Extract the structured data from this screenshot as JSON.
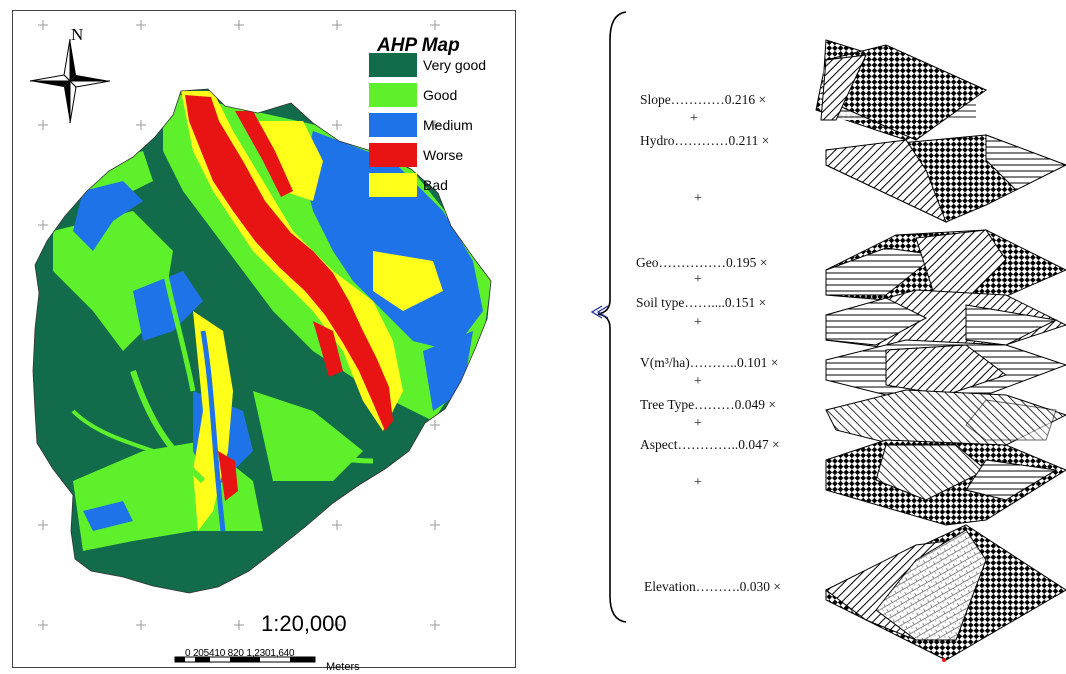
{
  "map": {
    "north_label": "N",
    "legend": {
      "title": "AHP Map",
      "items": [
        {
          "label": "Very good",
          "color": "#126b4a"
        },
        {
          "label": "Good",
          "color": "#5ef02b"
        },
        {
          "label": "Medium",
          "color": "#1e73e8"
        },
        {
          "label": "Worse",
          "color": "#e81414"
        },
        {
          "label": "Bad",
          "color": "#ffff1a"
        }
      ]
    },
    "scale_ratio": "1:20,000",
    "scale_ticks": "0 205410  820 1,2301,640",
    "scale_unit": "Meters"
  },
  "layers": {
    "labels": [
      "Slope…………0.216 ×",
      "Hydro…………0.211 ×",
      "Geo……………0.195 ×",
      "Soil type……....0.151 ×",
      "V(m³/ha)………..0.101 ×",
      "Tree Type………0.049 ×",
      "Aspect…………..0.047 ×",
      "Elevation……….0.030 ×"
    ],
    "plus": "+",
    "arrow": "⇐"
  }
}
